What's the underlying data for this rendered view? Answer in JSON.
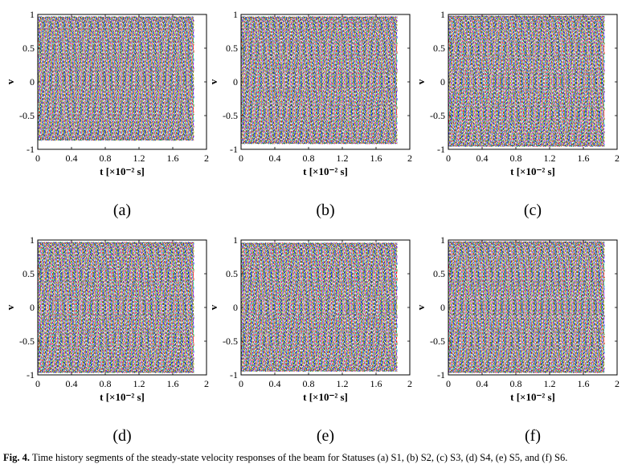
{
  "caption": {
    "label": "Fig. 4.",
    "text": "Time history segments of the steady-state velocity responses of the beam for Statuses (a) S1, (b) S2, (c) S3, (d) S4, (e) S5, and (f) S6."
  },
  "palette": [
    "#0000ff",
    "#00a000",
    "#ff0000",
    "#00bfbf",
    "#bf00bf",
    "#bfbf00",
    "#404040"
  ],
  "chart_data": [
    {
      "id": "a",
      "panel_label": "(a)",
      "type": "line",
      "xlabel": "t [×10⁻² s]",
      "ylabel": "v",
      "xlim": [
        0,
        2
      ],
      "ylim": [
        -1,
        1
      ],
      "x_data_range": [
        0,
        1.85
      ],
      "xticks": [
        "0",
        "0.4",
        "0.8",
        "1.2",
        "1.6",
        "2"
      ],
      "yticks": [
        "-1",
        "-0.5",
        "0",
        "0.5",
        "1"
      ],
      "envelope": {
        "max": 0.97,
        "min": -0.87
      },
      "description_series": "dense family of sinusoidal curves"
    },
    {
      "id": "b",
      "panel_label": "(b)",
      "type": "line",
      "xlabel": "t [×10⁻² s]",
      "ylabel": "v",
      "xlim": [
        0,
        2
      ],
      "ylim": [
        -1,
        1
      ],
      "x_data_range": [
        0,
        1.85
      ],
      "xticks": [
        "0",
        "0.4",
        "0.8",
        "1.2",
        "1.6",
        "2"
      ],
      "yticks": [
        "-1",
        "-0.5",
        "0",
        "0.5",
        "1"
      ],
      "envelope": {
        "max": 0.97,
        "min": -0.92
      },
      "description_series": "dense family of sinusoidal curves"
    },
    {
      "id": "c",
      "panel_label": "(c)",
      "type": "line",
      "xlabel": "t [×10⁻² s]",
      "ylabel": "v",
      "xlim": [
        0,
        2
      ],
      "ylim": [
        -1,
        1
      ],
      "x_data_range": [
        0,
        1.85
      ],
      "xticks": [
        "0",
        "0.4",
        "0.8",
        "1.2",
        "1.6",
        "2"
      ],
      "yticks": [
        "-1",
        "-0.5",
        "0",
        "0.5",
        "1"
      ],
      "envelope": {
        "max": 0.98,
        "min": -0.96
      },
      "description_series": "dense family of sinusoidal curves"
    },
    {
      "id": "d",
      "panel_label": "(d)",
      "type": "line",
      "xlabel": "t [×10⁻² s]",
      "ylabel": "v",
      "xlim": [
        0,
        2
      ],
      "ylim": [
        -1,
        1
      ],
      "x_data_range": [
        0,
        1.85
      ],
      "xticks": [
        "0",
        "0.4",
        "0.8",
        "1.2",
        "1.6",
        "2"
      ],
      "yticks": [
        "-1",
        "-0.5",
        "0",
        "0.5",
        "1"
      ],
      "envelope": {
        "max": 0.97,
        "min": -0.97
      },
      "description_series": "dense family of sinusoidal curves"
    },
    {
      "id": "e",
      "panel_label": "(e)",
      "type": "line",
      "xlabel": "t [×10⁻² s]",
      "ylabel": "v",
      "xlim": [
        0,
        2
      ],
      "ylim": [
        -1,
        1
      ],
      "x_data_range": [
        0,
        1.85
      ],
      "xticks": [
        "0",
        "0.4",
        "0.8",
        "1.2",
        "1.6",
        "2"
      ],
      "yticks": [
        "-1",
        "-0.5",
        "0",
        "0.5",
        "1"
      ],
      "envelope": {
        "max": 0.96,
        "min": -0.95
      },
      "description_series": "dense family of sinusoidal curves"
    },
    {
      "id": "f",
      "panel_label": "(f)",
      "type": "line",
      "xlabel": "t [×10⁻² s]",
      "ylabel": "v",
      "xlim": [
        0,
        2
      ],
      "ylim": [
        -1,
        1
      ],
      "x_data_range": [
        0,
        1.85
      ],
      "xticks": [
        "0",
        "0.4",
        "0.8",
        "1.2",
        "1.6",
        "2"
      ],
      "yticks": [
        "-1",
        "-0.5",
        "0",
        "0.5",
        "1"
      ],
      "envelope": {
        "max": 0.98,
        "min": -0.97
      },
      "description_series": "dense family of sinusoidal curves"
    }
  ]
}
